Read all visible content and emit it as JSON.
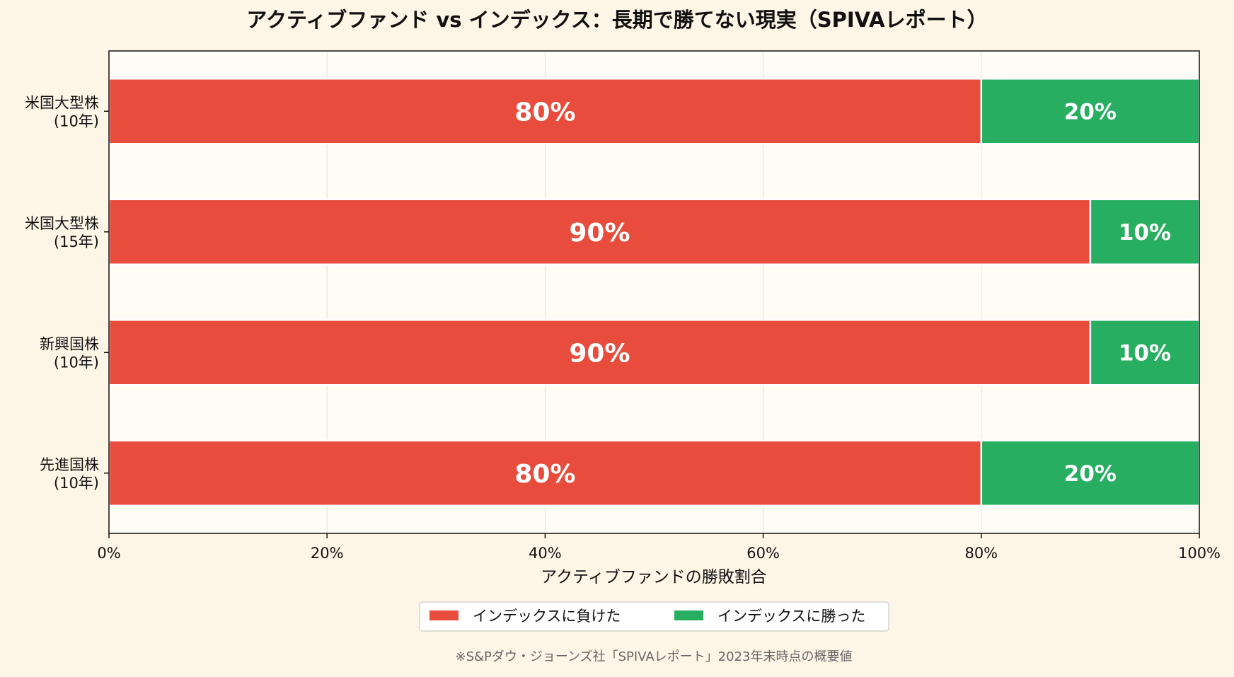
{
  "chart_data": {
    "type": "bar",
    "orientation": "horizontal",
    "stacked": true,
    "title": "アクティブファンド vs インデックス：長期で勝てない現実（SPIVAレポート）",
    "categories": [
      "米国大型株\n(10年)",
      "米国大型株\n(15年)",
      "新興国株\n(10年)",
      "先進国株\n(10年)"
    ],
    "series": [
      {
        "name": "インデックスに負けた",
        "values": [
          80,
          90,
          90,
          80
        ],
        "color": "#e74c3c"
      },
      {
        "name": "インデックスに勝った",
        "values": [
          20,
          10,
          10,
          20
        ],
        "color": "#27ae60"
      }
    ],
    "data_labels": [
      [
        "80%",
        "90%",
        "90%",
        "80%"
      ],
      [
        "20%",
        "10%",
        "10%",
        "20%"
      ]
    ],
    "xlabel": "アクティブファンドの勝敗割合",
    "ylabel": "",
    "xlim": [
      0,
      100
    ],
    "x_ticks": [
      0,
      20,
      40,
      60,
      80,
      100
    ],
    "x_tick_labels": [
      "0%",
      "20%",
      "40%",
      "60%",
      "80%",
      "100%"
    ],
    "grid": "vertical",
    "legend_position": "bottom-center",
    "footnote": "※S&Pダウ・ジョーンズ社「SPIVAレポート」2023年末時点の概要値",
    "background_color": "#fdf6e6",
    "plot_background_color": "#fffcf5"
  }
}
